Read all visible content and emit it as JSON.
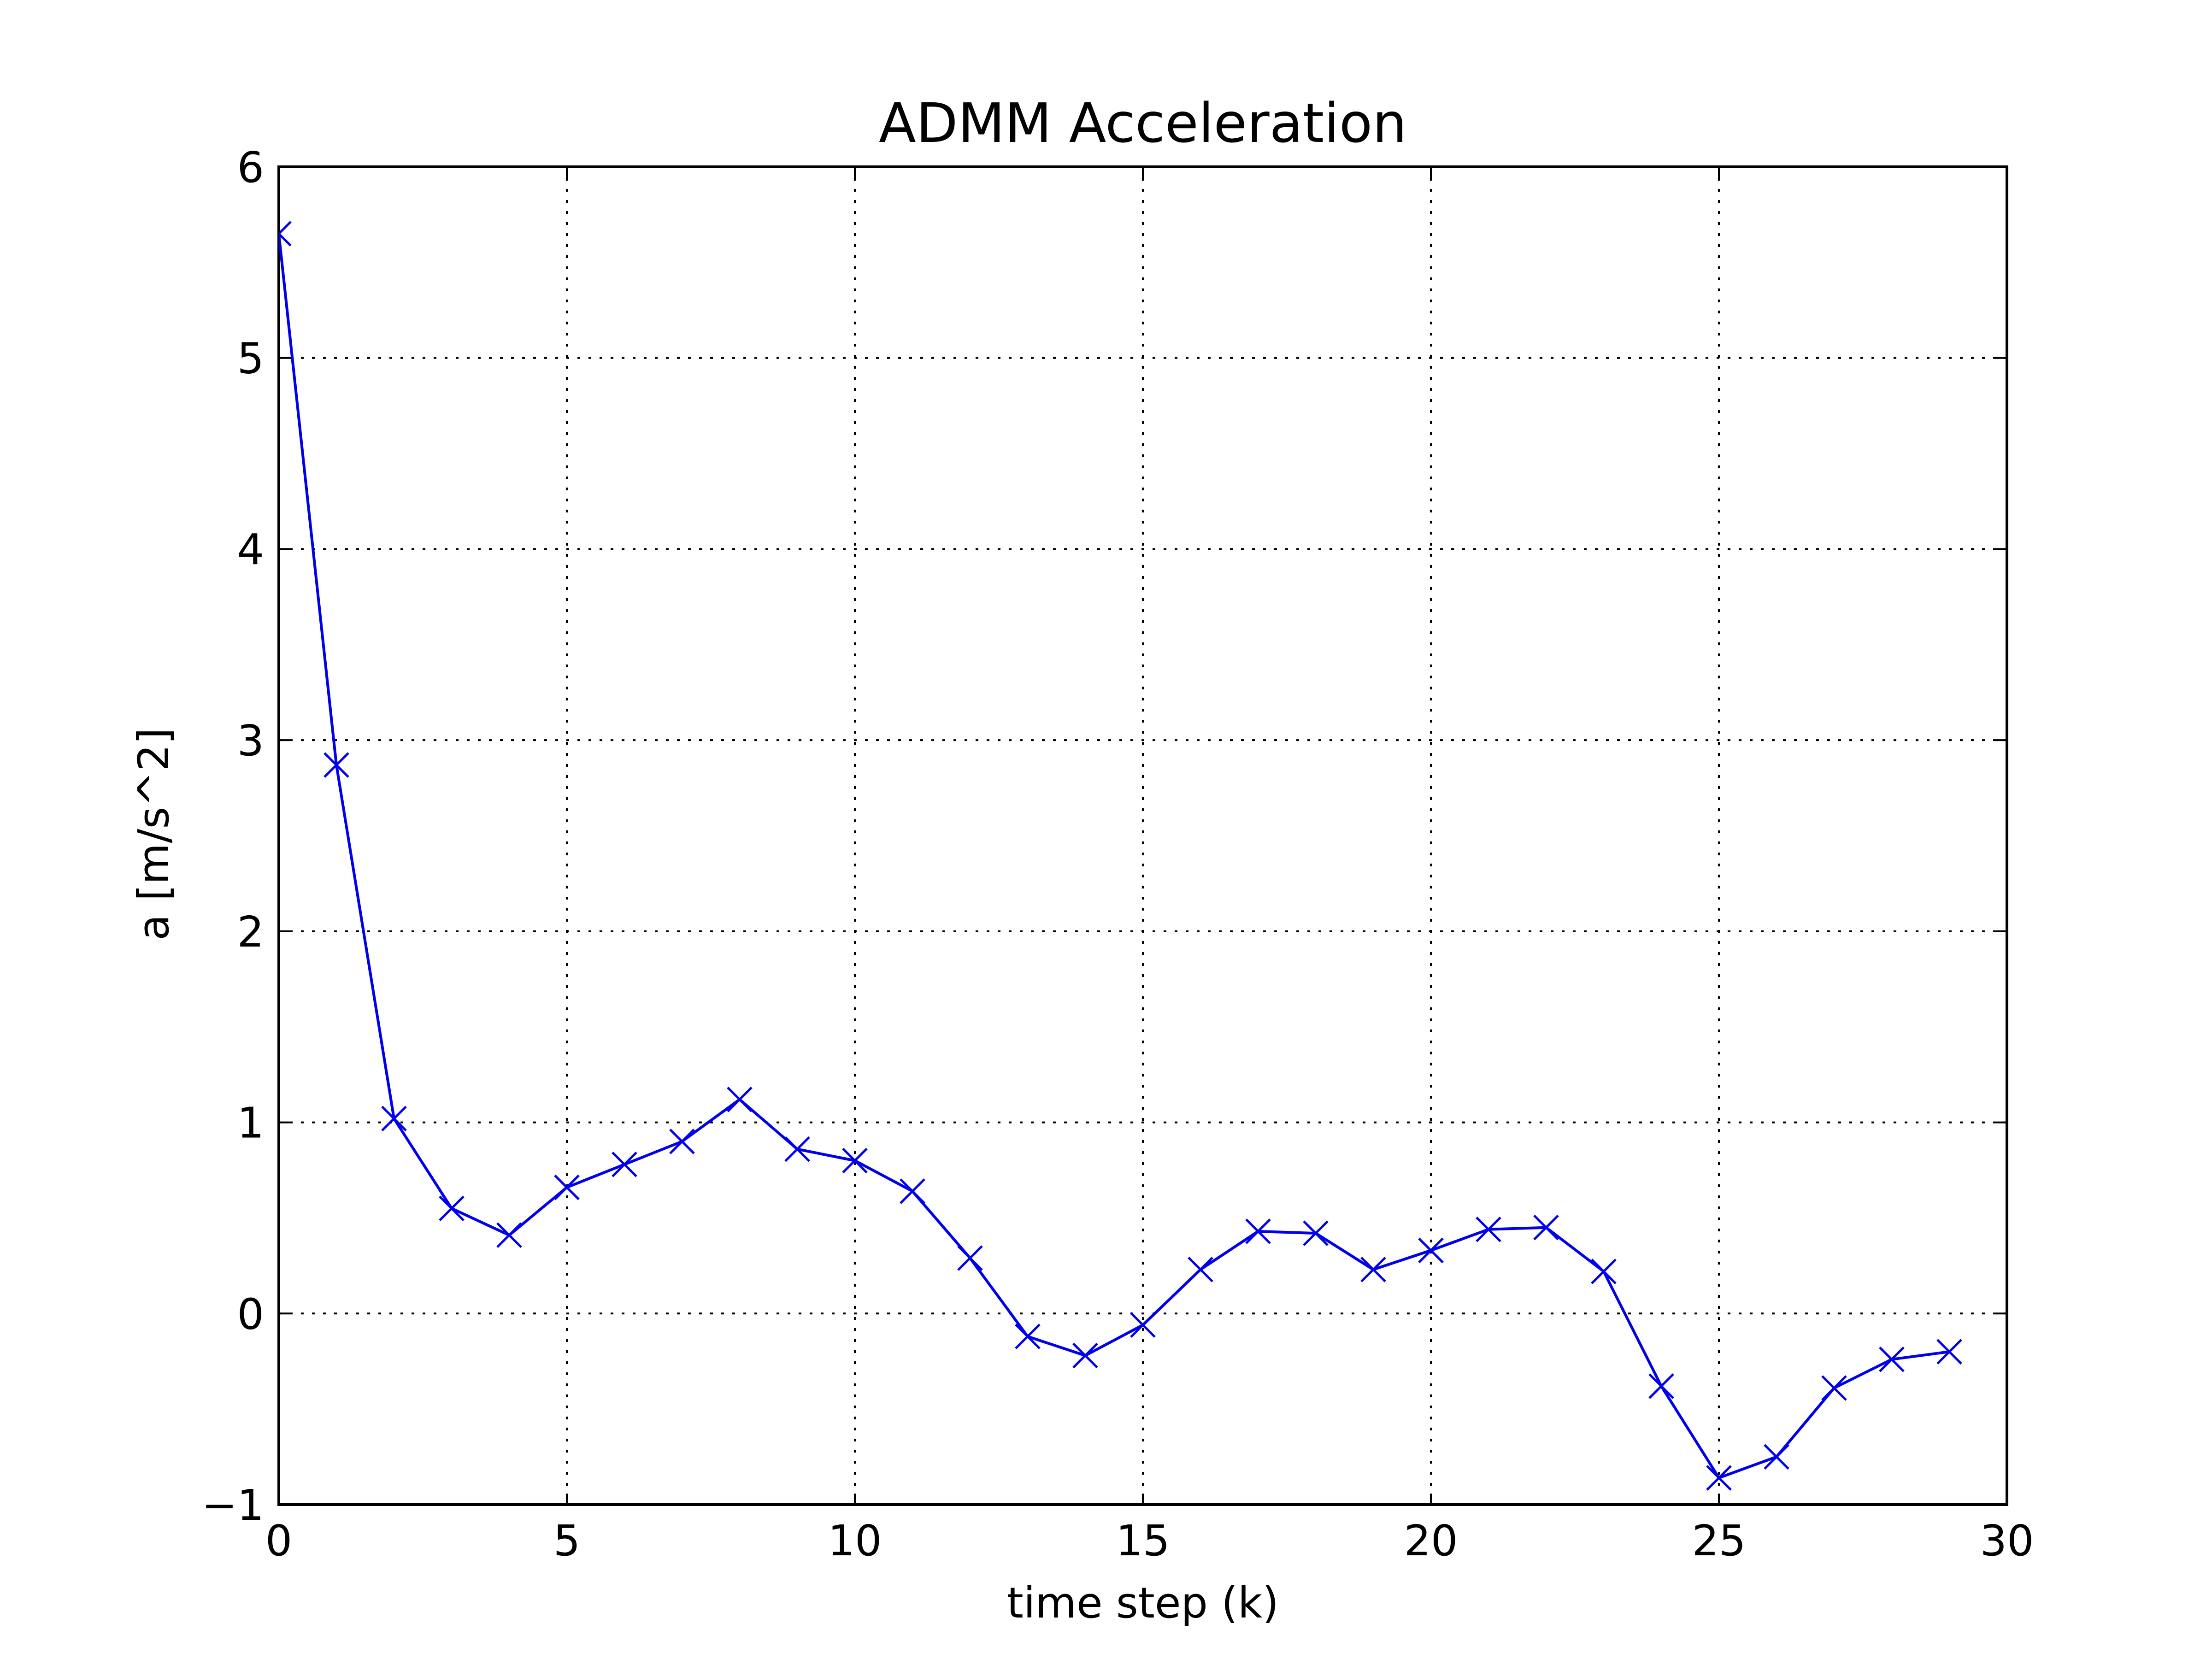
{
  "chart_data": {
    "type": "line",
    "title": "ADMM Acceleration",
    "xlabel": "time step (k)",
    "ylabel": "a [m/s^2]",
    "xlim": [
      0,
      30
    ],
    "ylim": [
      -1,
      6
    ],
    "xticks": [
      0,
      5,
      10,
      15,
      20,
      25,
      30
    ],
    "xtick_labels": [
      "0",
      "5",
      "10",
      "15",
      "20",
      "25",
      "30"
    ],
    "yticks": [
      -1,
      0,
      1,
      2,
      3,
      4,
      5,
      6
    ],
    "ytick_labels": [
      "−1",
      "0",
      "1",
      "2",
      "3",
      "4",
      "5",
      "6"
    ],
    "grid": true,
    "marker": "x",
    "color": "#0000ee",
    "series": [
      {
        "x": [
          0,
          1,
          2,
          3,
          4,
          5,
          6,
          7,
          8,
          9,
          10,
          11,
          12,
          13,
          14,
          15,
          16,
          17,
          18,
          19,
          20,
          21,
          22,
          23,
          24,
          25,
          26,
          27,
          28,
          29
        ],
        "values": [
          5.65,
          2.87,
          1.02,
          0.55,
          0.41,
          0.66,
          0.78,
          0.9,
          1.12,
          0.86,
          0.8,
          0.64,
          0.29,
          -0.12,
          -0.22,
          -0.06,
          0.23,
          0.43,
          0.42,
          0.23,
          0.33,
          0.44,
          0.45,
          0.22,
          -0.38,
          -0.86,
          -0.75,
          -0.39,
          -0.24,
          -0.2
        ]
      }
    ]
  }
}
